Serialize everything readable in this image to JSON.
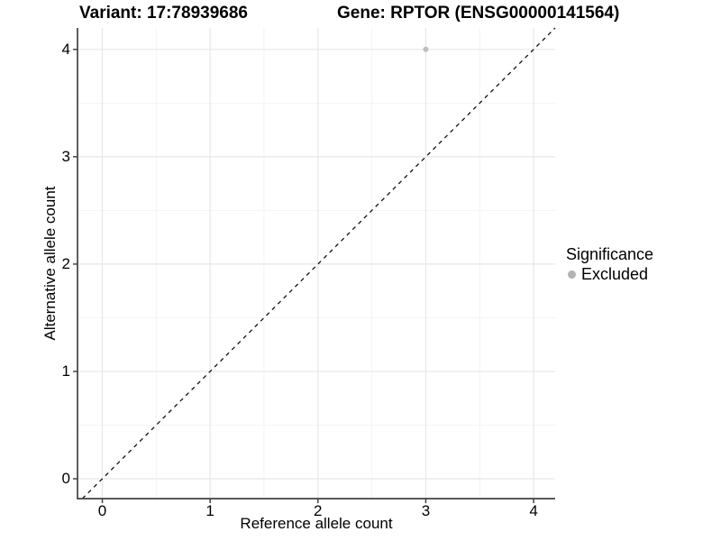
{
  "chart_data": {
    "type": "scatter",
    "titles": {
      "left": "Variant: 17:78939686",
      "right": "Gene: RPTOR (ENSG00000141564)"
    },
    "xlabel": "Reference allele count",
    "ylabel": "Alternative allele count",
    "xlim": [
      -0.23,
      4.2
    ],
    "ylim": [
      -0.185,
      4.2
    ],
    "xticks": [
      0,
      1,
      2,
      3,
      4
    ],
    "yticks": [
      0,
      1,
      2,
      3,
      4
    ],
    "grid": {
      "major": true,
      "minor": true,
      "major_color": "#e7e7e7",
      "minor_color": "#f2f2f2"
    },
    "series": [
      {
        "name": "Excluded",
        "color": "#bdbdbd",
        "points": [
          {
            "x": 3,
            "y": 4
          }
        ]
      }
    ],
    "reference_line": {
      "type": "identity",
      "equation": "y = x",
      "style": "dashed",
      "color": "#111111"
    },
    "legend": {
      "title": "Significance",
      "position": "right",
      "entries": [
        {
          "label": "Excluded",
          "color": "#b3b3b3"
        }
      ]
    },
    "axis_color": "#424242",
    "background": "#ffffff"
  }
}
